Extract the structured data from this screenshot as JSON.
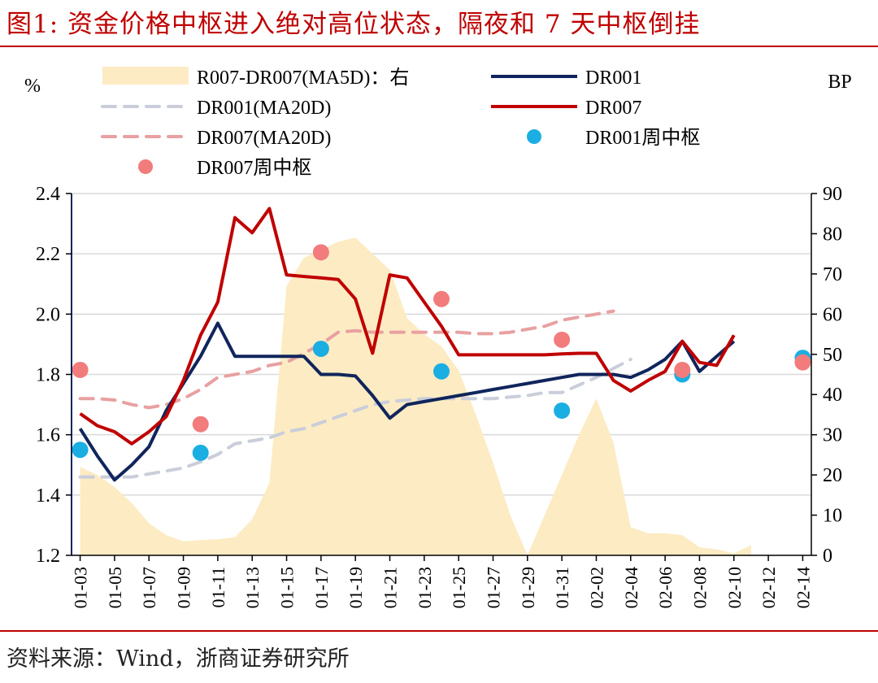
{
  "header": {
    "title": "图1:   资金价格中枢进入绝对高位状态，隔夜和 7 天中枢倒挂"
  },
  "footer": {
    "source": "资料来源：Wind，浙商证券研究所"
  },
  "colors": {
    "title_red": "#c00000",
    "dr001": "#10255c",
    "dr007": "#c00000",
    "dr001_ma": "#c9ceda",
    "dr007_ma": "#e8a0a0",
    "spread_area": "#fcebc3",
    "dr001_dot": "#1aaee3",
    "dr007_dot": "#f27c7c"
  },
  "chart_data": {
    "type": "line",
    "left_axis_label": "%",
    "right_axis_label": "BP",
    "ylim_left": [
      1.2,
      2.4
    ],
    "yticks_left": [
      "1.2",
      "1.4",
      "1.6",
      "1.8",
      "2.0",
      "2.2",
      "2.4"
    ],
    "ylim_right": [
      0,
      90
    ],
    "yticks_right": [
      "0",
      "10",
      "20",
      "30",
      "40",
      "50",
      "60",
      "70",
      "80",
      "90"
    ],
    "x": [
      "01-03",
      "01-04",
      "01-05",
      "01-06",
      "01-07",
      "01-08",
      "01-09",
      "01-10",
      "01-11",
      "01-12",
      "01-13",
      "01-14",
      "01-15",
      "01-16",
      "01-17",
      "01-18",
      "01-19",
      "01-20",
      "01-21",
      "01-22",
      "01-23",
      "01-24",
      "01-25",
      "01-26",
      "01-27",
      "01-28",
      "01-29",
      "01-30",
      "01-31",
      "02-01",
      "02-02",
      "02-03",
      "02-04",
      "02-05",
      "02-06",
      "02-07",
      "02-08",
      "02-09",
      "02-10",
      "02-11",
      "02-12",
      "02-13",
      "02-14"
    ],
    "x_tick_labels": [
      "01-03",
      "01-05",
      "01-07",
      "01-09",
      "01-11",
      "01-13",
      "01-15",
      "01-17",
      "01-19",
      "01-21",
      "01-23",
      "01-25",
      "01-27",
      "01-29",
      "01-31",
      "02-02",
      "02-04",
      "02-06",
      "02-08",
      "02-10",
      "02-12",
      "02-14"
    ],
    "legend": [
      {
        "name": "R007-DR007(MA5D)：右",
        "kind": "area"
      },
      {
        "name": "DR001",
        "kind": "line"
      },
      {
        "name": "DR001(MA20D)",
        "kind": "dash"
      },
      {
        "name": "DR007",
        "kind": "line"
      },
      {
        "name": "DR007(MA20D)",
        "kind": "dash"
      },
      {
        "name": "DR001周中枢",
        "kind": "dot"
      },
      {
        "name": "DR007周中枢",
        "kind": "dot"
      }
    ],
    "series": [
      {
        "name": "R007-DR007(MA5D)：右",
        "axis": "right",
        "type": "area",
        "values": [
          22,
          20,
          17,
          13,
          8,
          5,
          3.5,
          3.8,
          4,
          4.5,
          9,
          18,
          67,
          74,
          76,
          78,
          79,
          75,
          71,
          59,
          55,
          52,
          46,
          35,
          23,
          10,
          0,
          10,
          20,
          30,
          39,
          28,
          7,
          5.5,
          5.5,
          5,
          2,
          1.5,
          0.5,
          2.5,
          null,
          null,
          null
        ]
      },
      {
        "name": "DR001",
        "axis": "left",
        "type": "line",
        "values": [
          1.62,
          1.53,
          1.45,
          1.5,
          1.56,
          1.68,
          1.77,
          1.86,
          1.97,
          1.86,
          1.86,
          1.86,
          1.86,
          1.86,
          1.8,
          1.8,
          1.795,
          1.73,
          1.655,
          1.7,
          1.71,
          1.72,
          1.73,
          1.74,
          1.75,
          1.76,
          1.77,
          1.78,
          1.79,
          1.8,
          1.8,
          1.8,
          1.79,
          1.815,
          1.85,
          1.91,
          1.81,
          1.86,
          1.91,
          null,
          null,
          null,
          null
        ]
      },
      {
        "name": "DR007",
        "axis": "left",
        "type": "line",
        "values": [
          1.67,
          1.63,
          1.61,
          1.57,
          1.61,
          1.66,
          1.78,
          1.93,
          2.04,
          2.32,
          2.27,
          2.35,
          2.13,
          2.125,
          2.12,
          2.115,
          2.05,
          1.87,
          2.13,
          2.12,
          2.04,
          1.96,
          1.865,
          1.865,
          1.865,
          1.865,
          1.865,
          1.865,
          1.868,
          1.87,
          1.87,
          1.78,
          1.745,
          1.78,
          1.81,
          1.91,
          1.84,
          1.83,
          1.93,
          null,
          null,
          null,
          null
        ]
      },
      {
        "name": "DR001(MA20D)",
        "axis": "left",
        "type": "dash",
        "values": [
          1.46,
          1.46,
          1.46,
          1.46,
          1.47,
          1.48,
          1.49,
          1.51,
          1.535,
          1.57,
          1.58,
          1.59,
          1.61,
          1.62,
          1.64,
          1.66,
          1.68,
          1.7,
          1.71,
          1.715,
          1.72,
          1.72,
          1.72,
          1.72,
          1.72,
          1.725,
          1.73,
          1.74,
          1.74,
          1.765,
          1.79,
          1.82,
          1.85,
          null,
          null,
          null,
          null,
          null,
          null,
          null,
          null,
          null,
          null
        ]
      },
      {
        "name": "DR007(MA20D)",
        "axis": "left",
        "type": "dash",
        "values": [
          1.72,
          1.72,
          1.715,
          1.7,
          1.69,
          1.7,
          1.72,
          1.75,
          1.79,
          1.8,
          1.81,
          1.83,
          1.84,
          1.87,
          1.9,
          1.94,
          1.945,
          1.94,
          1.94,
          1.94,
          1.94,
          1.94,
          1.94,
          1.935,
          1.935,
          1.94,
          1.95,
          1.96,
          1.98,
          1.99,
          2.0,
          2.01,
          null,
          null,
          null,
          null,
          null,
          null,
          null,
          null,
          null,
          null,
          null
        ]
      },
      {
        "name": "DR001周中枢",
        "axis": "left",
        "type": "dot",
        "points": [
          {
            "x": "01-03",
            "y": 1.55
          },
          {
            "x": "01-10",
            "y": 1.54
          },
          {
            "x": "01-17",
            "y": 1.885
          },
          {
            "x": "01-24",
            "y": 1.81
          },
          {
            "x": "01-31",
            "y": 1.68
          },
          {
            "x": "02-07",
            "y": 1.8
          },
          {
            "x": "02-14",
            "y": 1.855
          }
        ]
      },
      {
        "name": "DR007周中枢",
        "axis": "left",
        "type": "dot",
        "points": [
          {
            "x": "01-03",
            "y": 1.815
          },
          {
            "x": "01-10",
            "y": 1.635
          },
          {
            "x": "01-17",
            "y": 2.205
          },
          {
            "x": "01-24",
            "y": 2.05
          },
          {
            "x": "01-31",
            "y": 1.915
          },
          {
            "x": "02-07",
            "y": 1.815
          },
          {
            "x": "02-14",
            "y": 1.84
          }
        ]
      }
    ]
  }
}
